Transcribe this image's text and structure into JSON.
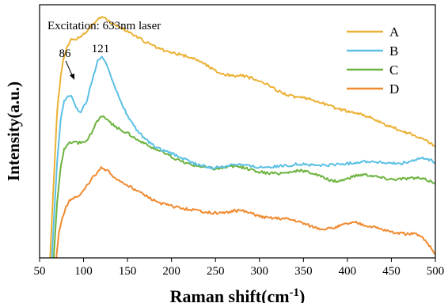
{
  "chart_data": {
    "type": "line",
    "title": "",
    "xlabel": "Raman shift(cm",
    "xlabel_superscript": "-1",
    "xlabel_suffix": ")",
    "ylabel": "Intensity(a.u.)",
    "xlim": [
      50,
      500
    ],
    "ylim": [
      0,
      100
    ],
    "x_ticks": [
      50,
      100,
      150,
      200,
      250,
      300,
      350,
      400,
      450,
      500
    ],
    "y_ticks": [],
    "grid": false,
    "legend_position": "top-right",
    "annotations": [
      {
        "text": "Excitation: 633nm laser"
      },
      {
        "text": "86",
        "x": 86,
        "arrow": true
      },
      {
        "text": "121",
        "x": 121
      }
    ],
    "series": [
      {
        "name": "A",
        "color": "#EBB135",
        "points": [
          [
            62,
            0
          ],
          [
            66,
            30
          ],
          [
            70,
            58
          ],
          [
            74,
            72
          ],
          [
            78,
            80
          ],
          [
            82,
            84
          ],
          [
            86,
            86
          ],
          [
            92,
            86.6
          ],
          [
            100,
            88.3
          ],
          [
            106,
            90.6
          ],
          [
            112,
            92.9
          ],
          [
            118,
            94.8
          ],
          [
            121,
            95.3
          ],
          [
            126,
            94.3
          ],
          [
            132,
            92.6
          ],
          [
            140,
            91.3
          ],
          [
            150,
            89.6
          ],
          [
            160,
            87.5
          ],
          [
            170,
            85.4
          ],
          [
            180,
            83.6
          ],
          [
            190,
            82.1
          ],
          [
            200,
            81.0
          ],
          [
            210,
            80.3
          ],
          [
            220,
            79.4
          ],
          [
            230,
            78.2
          ],
          [
            240,
            76.1
          ],
          [
            250,
            73.9
          ],
          [
            260,
            72.5
          ],
          [
            270,
            72.0
          ],
          [
            280,
            72.0
          ],
          [
            290,
            71.1
          ],
          [
            300,
            69.8
          ],
          [
            310,
            68.2
          ],
          [
            320,
            66.3
          ],
          [
            330,
            64.7
          ],
          [
            340,
            63.6
          ],
          [
            350,
            63.1
          ],
          [
            360,
            62.4
          ],
          [
            370,
            61.4
          ],
          [
            380,
            60.1
          ],
          [
            390,
            58.8
          ],
          [
            400,
            58.0
          ],
          [
            410,
            57.4
          ],
          [
            420,
            56.3
          ],
          [
            430,
            54.8
          ],
          [
            440,
            52.9
          ],
          [
            450,
            51.7
          ],
          [
            460,
            50.4
          ],
          [
            470,
            49.2
          ],
          [
            480,
            47.9
          ],
          [
            490,
            46.3
          ],
          [
            500,
            44.0
          ]
        ]
      },
      {
        "name": "B",
        "color": "#5BC0E4",
        "points": [
          [
            64,
            0
          ],
          [
            67,
            20
          ],
          [
            70,
            38
          ],
          [
            74,
            55
          ],
          [
            78,
            62
          ],
          [
            82,
            64
          ],
          [
            86,
            64.2
          ],
          [
            90,
            61
          ],
          [
            94,
            57.8
          ],
          [
            98,
            57.9
          ],
          [
            104,
            62.5
          ],
          [
            110,
            70.5
          ],
          [
            116,
            77.6
          ],
          [
            121,
            79.0
          ],
          [
            126,
            76.8
          ],
          [
            132,
            71.2
          ],
          [
            140,
            63.3
          ],
          [
            150,
            56.1
          ],
          [
            160,
            50.8
          ],
          [
            170,
            46.8
          ],
          [
            180,
            44.2
          ],
          [
            190,
            42.4
          ],
          [
            200,
            41.2
          ],
          [
            210,
            39.8
          ],
          [
            220,
            38.1
          ],
          [
            230,
            36.8
          ],
          [
            240,
            35.9
          ],
          [
            250,
            35.6
          ],
          [
            260,
            36.1
          ],
          [
            270,
            37.1
          ],
          [
            280,
            36.9
          ],
          [
            290,
            36.2
          ],
          [
            300,
            35.9
          ],
          [
            310,
            36.0
          ],
          [
            320,
            36.1
          ],
          [
            330,
            36.4
          ],
          [
            340,
            36.9
          ],
          [
            350,
            37.1
          ],
          [
            360,
            36.6
          ],
          [
            370,
            36.5
          ],
          [
            380,
            36.7
          ],
          [
            390,
            37.0
          ],
          [
            400,
            37.2
          ],
          [
            410,
            37.7
          ],
          [
            420,
            38.1
          ],
          [
            430,
            38.0
          ],
          [
            440,
            37.6
          ],
          [
            450,
            37.2
          ],
          [
            460,
            37.3
          ],
          [
            470,
            37.9
          ],
          [
            480,
            39.0
          ],
          [
            490,
            39.3
          ],
          [
            500,
            37.6
          ]
        ]
      },
      {
        "name": "C",
        "color": "#6DB33F",
        "points": [
          [
            66,
            0
          ],
          [
            70,
            22
          ],
          [
            74,
            36
          ],
          [
            78,
            43
          ],
          [
            82,
            45
          ],
          [
            86,
            45.5
          ],
          [
            94,
            45.4
          ],
          [
            100,
            45.8
          ],
          [
            106,
            47.5
          ],
          [
            112,
            51.5
          ],
          [
            118,
            55.6
          ],
          [
            121,
            56.0
          ],
          [
            126,
            54.8
          ],
          [
            132,
            52.8
          ],
          [
            140,
            51.1
          ],
          [
            150,
            49.4
          ],
          [
            160,
            47.0
          ],
          [
            170,
            44.9
          ],
          [
            180,
            43.3
          ],
          [
            190,
            41.7
          ],
          [
            200,
            39.9
          ],
          [
            210,
            38.3
          ],
          [
            220,
            37.1
          ],
          [
            230,
            36.4
          ],
          [
            240,
            35.8
          ],
          [
            250,
            35.2
          ],
          [
            260,
            35.7
          ],
          [
            270,
            36.3
          ],
          [
            280,
            35.8
          ],
          [
            290,
            34.9
          ],
          [
            300,
            34.0
          ],
          [
            310,
            33.4
          ],
          [
            320,
            33.4
          ],
          [
            330,
            33.7
          ],
          [
            340,
            34.3
          ],
          [
            350,
            34.4
          ],
          [
            360,
            33.6
          ],
          [
            370,
            32.1
          ],
          [
            380,
            30.7
          ],
          [
            390,
            30.4
          ],
          [
            400,
            31.3
          ],
          [
            410,
            32.6
          ],
          [
            420,
            33.0
          ],
          [
            430,
            32.4
          ],
          [
            440,
            31.6
          ],
          [
            450,
            31.1
          ],
          [
            460,
            31.2
          ],
          [
            470,
            31.5
          ],
          [
            480,
            31.5
          ],
          [
            490,
            30.8
          ],
          [
            500,
            29.6
          ]
        ]
      },
      {
        "name": "D",
        "color": "#F08A30",
        "points": [
          [
            69,
            0
          ],
          [
            72,
            10
          ],
          [
            76,
            16
          ],
          [
            80,
            20
          ],
          [
            84,
            23
          ],
          [
            90,
            23.8
          ],
          [
            96,
            24.5
          ],
          [
            102,
            27.5
          ],
          [
            108,
            30.6
          ],
          [
            114,
            33.2
          ],
          [
            120,
            35.4
          ],
          [
            126,
            34.9
          ],
          [
            132,
            32.6
          ],
          [
            140,
            30.6
          ],
          [
            150,
            28.7
          ],
          [
            160,
            26.7
          ],
          [
            170,
            24.6
          ],
          [
            180,
            22.7
          ],
          [
            190,
            21.3
          ],
          [
            200,
            20.4
          ],
          [
            210,
            19.7
          ],
          [
            220,
            19.1
          ],
          [
            230,
            18.6
          ],
          [
            240,
            18.1
          ],
          [
            250,
            17.7
          ],
          [
            260,
            17.7
          ],
          [
            270,
            18.6
          ],
          [
            280,
            18.7
          ],
          [
            290,
            17.6
          ],
          [
            300,
            16.5
          ],
          [
            310,
            15.8
          ],
          [
            320,
            15.7
          ],
          [
            330,
            15.5
          ],
          [
            340,
            14.9
          ],
          [
            350,
            13.7
          ],
          [
            360,
            12.4
          ],
          [
            370,
            11.6
          ],
          [
            380,
            11.5
          ],
          [
            390,
            12.5
          ],
          [
            400,
            13.6
          ],
          [
            410,
            13.9
          ],
          [
            420,
            13.0
          ],
          [
            430,
            12.1
          ],
          [
            440,
            11.2
          ],
          [
            450,
            10.3
          ],
          [
            460,
            9.6
          ],
          [
            470,
            9.5
          ],
          [
            480,
            9.3
          ],
          [
            490,
            6.4
          ],
          [
            500,
            1.5
          ]
        ]
      }
    ]
  }
}
